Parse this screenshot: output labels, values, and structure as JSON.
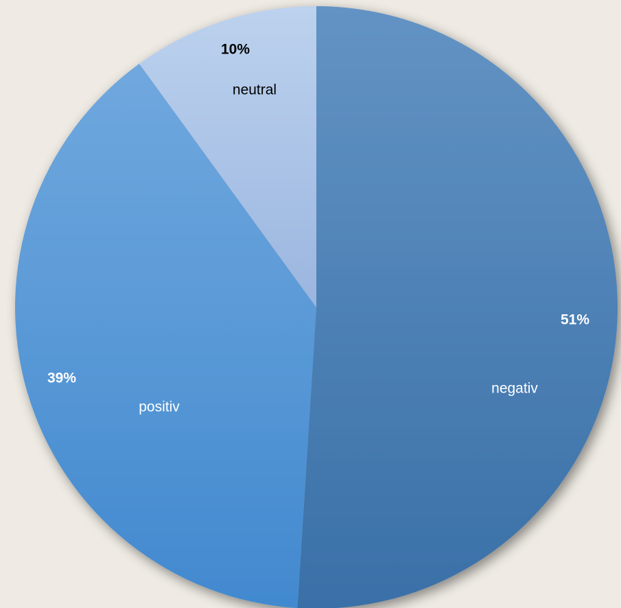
{
  "chart_data": {
    "type": "pie",
    "slices": [
      {
        "label": "negativ",
        "value": 51,
        "display": "51%",
        "color": "#4a80b8",
        "text_color": "#ffffff",
        "pct_text_color": "#ffffff"
      },
      {
        "label": "positiv",
        "value": 39,
        "display": "39%",
        "color": "#5b9bdb",
        "text_color": "#ffffff",
        "pct_text_color": "#ffffff"
      },
      {
        "label": "neutral",
        "value": 10,
        "display": "10%",
        "color": "#aec6e8",
        "text_color": "#000000",
        "pct_text_color": "#000000"
      }
    ],
    "background": "#efebe4",
    "legend": "none"
  }
}
